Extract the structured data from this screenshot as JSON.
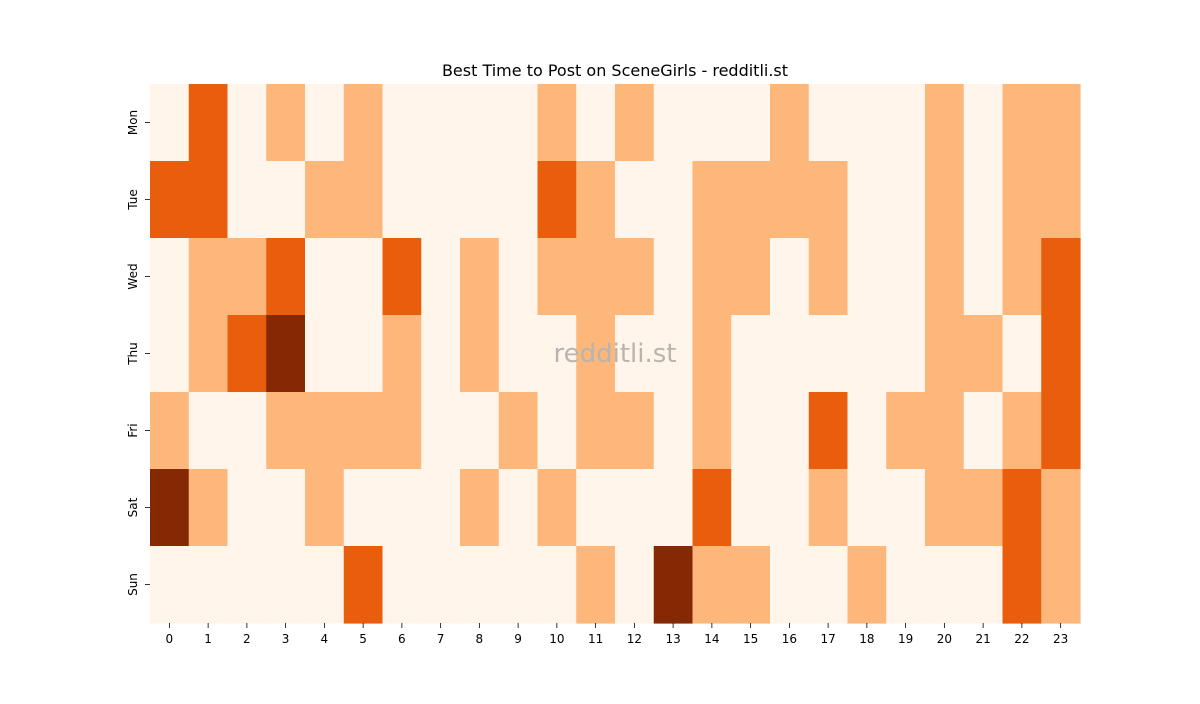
{
  "chart_data": {
    "type": "heatmap",
    "title": "Best Time to Post on SceneGirls - redditli.st",
    "xlabel": "",
    "ylabel": "",
    "x": [
      "0",
      "1",
      "2",
      "3",
      "4",
      "5",
      "6",
      "7",
      "8",
      "9",
      "10",
      "11",
      "12",
      "13",
      "14",
      "15",
      "16",
      "17",
      "18",
      "19",
      "20",
      "21",
      "22",
      "23"
    ],
    "y": [
      "Mon",
      "Tue",
      "Wed",
      "Thu",
      "Fri",
      "Sat",
      "Sun"
    ],
    "values": [
      [
        0,
        2,
        0,
        1,
        0,
        1,
        0,
        0,
        0,
        0,
        1,
        0,
        1,
        0,
        0,
        0,
        1,
        0,
        0,
        0,
        1,
        0,
        1,
        1
      ],
      [
        2,
        2,
        0,
        0,
        1,
        1,
        0,
        0,
        0,
        0,
        2,
        1,
        0,
        0,
        1,
        1,
        1,
        1,
        0,
        0,
        1,
        0,
        1,
        1
      ],
      [
        0,
        1,
        1,
        2,
        0,
        0,
        2,
        0,
        1,
        0,
        1,
        1,
        1,
        0,
        1,
        1,
        0,
        1,
        0,
        0,
        1,
        0,
        1,
        2
      ],
      [
        0,
        1,
        2,
        3,
        0,
        0,
        1,
        0,
        1,
        0,
        0,
        1,
        0,
        0,
        1,
        0,
        0,
        0,
        0,
        0,
        1,
        1,
        0,
        2
      ],
      [
        1,
        0,
        0,
        1,
        1,
        1,
        1,
        0,
        0,
        1,
        0,
        1,
        1,
        0,
        1,
        0,
        0,
        2,
        0,
        1,
        1,
        0,
        1,
        2
      ],
      [
        3,
        1,
        0,
        0,
        1,
        0,
        0,
        0,
        1,
        0,
        1,
        0,
        0,
        0,
        2,
        0,
        0,
        1,
        0,
        0,
        1,
        1,
        2,
        1
      ],
      [
        0,
        0,
        0,
        0,
        0,
        2,
        0,
        0,
        0,
        0,
        0,
        1,
        0,
        3,
        1,
        1,
        0,
        0,
        1,
        0,
        0,
        0,
        2,
        1
      ]
    ],
    "colormap": [
      "#fff5eb",
      "#fdb77a",
      "#e95e0d",
      "#842904"
    ],
    "colorbar": false,
    "watermark": "redditli.st"
  }
}
